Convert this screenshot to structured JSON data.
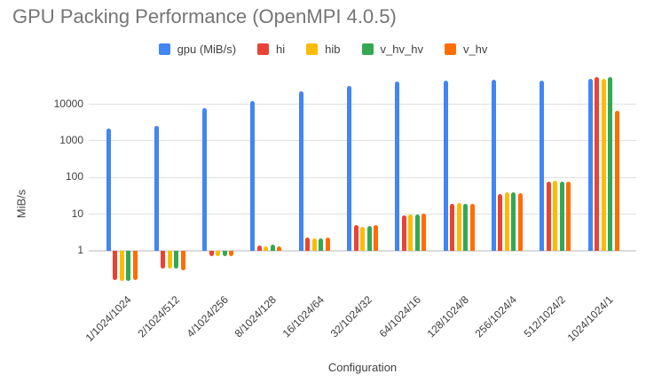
{
  "chart_data": {
    "type": "bar",
    "title": "GPU Packing Performance (OpenMPI 4.0.5)",
    "xlabel": "Configuration",
    "ylabel": "MiB/s",
    "y_scale": "log",
    "y_ticks": [
      1,
      10,
      100,
      1000,
      10000
    ],
    "grid": true,
    "legend_position": "top",
    "categories": [
      "1/1024/1024",
      "2/1024/512",
      "4/1024/256",
      "8/1024/128",
      "16/1024/64",
      "32/1024/32",
      "64/1024/16",
      "128/1024/8",
      "256/1024/4",
      "512/1024/2",
      "1024/1024/1"
    ],
    "series": [
      {
        "name": "gpu (MiB/s)",
        "color": "#4285F4",
        "values": [
          2200,
          2500,
          8000,
          12000,
          22000,
          32000,
          41000,
          44000,
          46000,
          43000,
          49000
        ]
      },
      {
        "name": "hi",
        "color": "#EA4335",
        "values": [
          0.16,
          0.32,
          0.7,
          1.4,
          2.3,
          5.0,
          9.5,
          19.5,
          36,
          76,
          55000
        ]
      },
      {
        "name": "hib",
        "color": "#FBBC04",
        "values": [
          0.15,
          0.33,
          0.72,
          1.3,
          2.2,
          4.5,
          10.0,
          20.5,
          39,
          83,
          50000
        ]
      },
      {
        "name": "v_hv_hv",
        "color": "#34A853",
        "values": [
          0.15,
          0.32,
          0.73,
          1.45,
          2.2,
          4.8,
          10.0,
          19.5,
          39,
          79,
          56000
        ]
      },
      {
        "name": "v_hv",
        "color": "#FF6D01",
        "values": [
          0.16,
          0.3,
          0.7,
          1.35,
          2.3,
          5.0,
          10.5,
          19.4,
          38,
          79,
          6800
        ]
      }
    ]
  }
}
